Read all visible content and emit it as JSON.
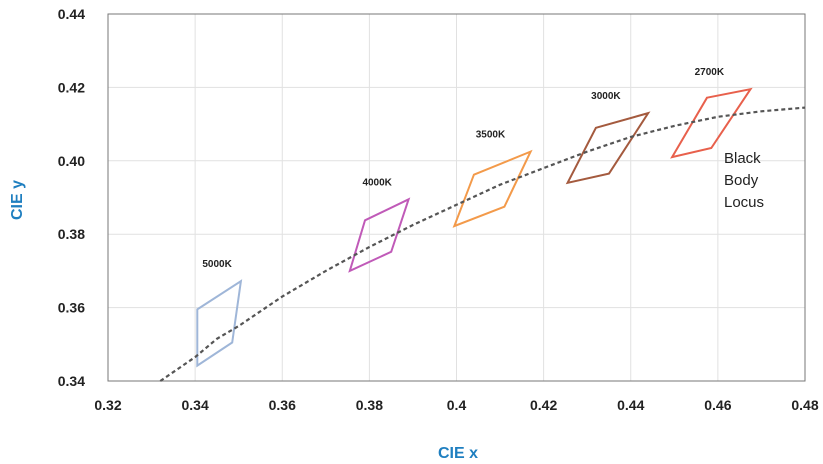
{
  "chart_data": {
    "type": "line",
    "title": "",
    "xlabel": "CIE x",
    "ylabel": "CIE y",
    "xlim": [
      0.32,
      0.48
    ],
    "ylim": [
      0.34,
      0.44
    ],
    "x_ticks": [
      "0.32",
      "0.34",
      "0.36",
      "0.38",
      "0.4",
      "0.42",
      "0.44",
      "0.46",
      "0.48"
    ],
    "y_ticks": [
      "0.34",
      "0.36",
      "0.38",
      "0.40",
      "0.42",
      "0.44"
    ],
    "grid": true,
    "axis_title_color": "#1f7fc0",
    "locus": {
      "label_lines": [
        "Black",
        "Body",
        "Locus"
      ],
      "color": "#555555",
      "style": "dashed",
      "x": [
        0.332,
        0.34,
        0.345,
        0.35,
        0.36,
        0.37,
        0.38,
        0.39,
        0.4,
        0.41,
        0.42,
        0.43,
        0.44,
        0.45,
        0.46,
        0.47,
        0.48
      ],
      "y": [
        0.34,
        0.3465,
        0.3515,
        0.355,
        0.363,
        0.37,
        0.3765,
        0.3825,
        0.388,
        0.3935,
        0.398,
        0.4025,
        0.4065,
        0.4095,
        0.412,
        0.4135,
        0.4145
      ]
    },
    "quadrangles": [
      {
        "label": "5000K",
        "color": "#9fb6d8",
        "points": [
          [
            0.3405,
            0.3595
          ],
          [
            0.3505,
            0.3672
          ],
          [
            0.3485,
            0.3505
          ],
          [
            0.3405,
            0.3442
          ]
        ]
      },
      {
        "label": "4000K",
        "color": "#c05ab8",
        "points": [
          [
            0.379,
            0.3838
          ],
          [
            0.389,
            0.3895
          ],
          [
            0.385,
            0.3752
          ],
          [
            0.3755,
            0.37
          ]
        ]
      },
      {
        "label": "3500K",
        "color": "#f39a4a",
        "points": [
          [
            0.404,
            0.3962
          ],
          [
            0.417,
            0.4025
          ],
          [
            0.411,
            0.3875
          ],
          [
            0.3995,
            0.3822
          ]
        ]
      },
      {
        "label": "3000K",
        "color": "#a45a3e",
        "points": [
          [
            0.432,
            0.409
          ],
          [
            0.444,
            0.413
          ],
          [
            0.435,
            0.3965
          ],
          [
            0.4255,
            0.394
          ]
        ]
      },
      {
        "label": "2700K",
        "color": "#e8604c",
        "points": [
          [
            0.4575,
            0.4172
          ],
          [
            0.4675,
            0.4195
          ],
          [
            0.4585,
            0.4035
          ],
          [
            0.4495,
            0.401
          ]
        ]
      }
    ]
  }
}
